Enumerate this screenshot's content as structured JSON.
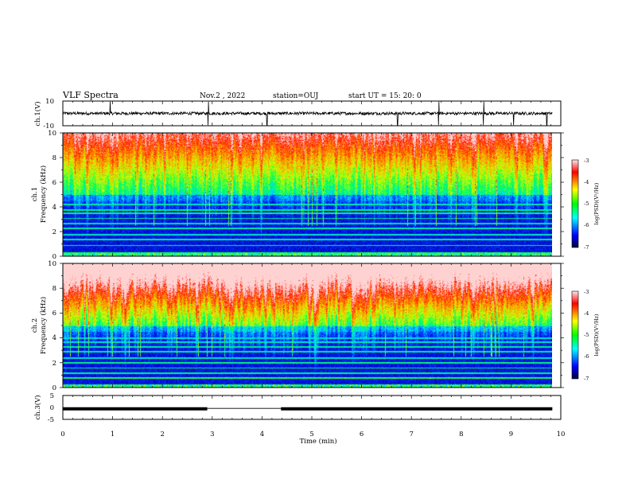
{
  "header": {
    "title": "VLF Spectra",
    "date": "Nov.2  , 2022",
    "station": "station=OUJ",
    "start": "start  UT  =   15: 20: 0"
  },
  "colors": {
    "spectrogram_scale": [
      "#000040",
      "#0000ff",
      "#00ffff",
      "#00ff00",
      "#ffff00",
      "#ff0000",
      "#ffe0e0"
    ],
    "trace": "#000000",
    "axis": "#000000"
  },
  "chart_data": [
    {
      "type": "line",
      "name": "ch1-waveform",
      "ylabel": "ch.1(V)",
      "ylim": [
        -10,
        10
      ],
      "yticks": [
        "10",
        "-10"
      ],
      "xlim": [
        0,
        10
      ],
      "baseline": 0,
      "noise_amplitude": 1.2,
      "spikes_min": [
        0.95,
        2.92,
        4.1,
        6.72,
        7.55,
        8.45,
        9.05,
        9.72
      ]
    },
    {
      "type": "heatmap",
      "name": "ch1-spectrogram",
      "xlabel": "",
      "ylabel": "Frequency  (kHz)",
      "channel_label": "ch.1",
      "ylim": [
        0,
        10
      ],
      "yticks": [
        "0",
        "2",
        "4",
        "6",
        "8",
        "10"
      ],
      "xlim": [
        0,
        10
      ],
      "data_end_min": 9.83,
      "colorbar": {
        "label": "log(PSD)(V²/Hz)",
        "range": [
          -7,
          -3
        ],
        "ticks": [
          "-3",
          "-4",
          "-5",
          "-6",
          "-7"
        ]
      }
    },
    {
      "type": "heatmap",
      "name": "ch2-spectrogram",
      "xlabel": "",
      "ylabel": "Frequency  (kHz)",
      "channel_label": "ch.2",
      "ylim": [
        0,
        10
      ],
      "yticks": [
        "0",
        "2",
        "4",
        "6",
        "8",
        "10"
      ],
      "xlim": [
        0,
        10
      ],
      "data_end_min": 9.83,
      "colorbar": {
        "label": "log(PSD)(V²/Hz)",
        "range": [
          -7,
          -3
        ],
        "ticks": [
          "-3",
          "-4",
          "-5",
          "-6",
          "-7"
        ]
      }
    },
    {
      "type": "line",
      "name": "ch3-status",
      "ylabel": "ch.3(V)",
      "ylim": [
        -5,
        5
      ],
      "yticks": [
        "5",
        "0",
        "-5"
      ],
      "xlim": [
        0,
        10
      ],
      "xlabel": "Time  (min)",
      "xticks": [
        "0",
        "1",
        "2",
        "3",
        "4",
        "5",
        "6",
        "7",
        "8",
        "9",
        "10"
      ],
      "level": -0.6,
      "segments_min": [
        [
          0,
          2.9
        ],
        [
          4.38,
          9.83
        ]
      ],
      "gap_level": -0.4
    }
  ]
}
